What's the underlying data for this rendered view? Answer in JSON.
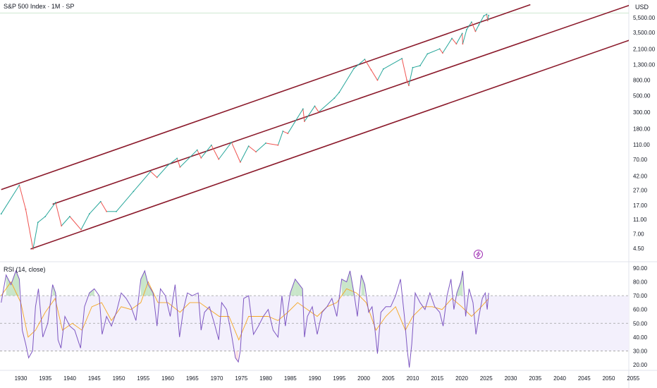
{
  "header": {
    "title": "S&P 500 Index · 1M · SP",
    "currency": "USD"
  },
  "rsi_panel": {
    "label": "RSI (14, close)"
  },
  "colors": {
    "price_up": "#26a69a",
    "price_down": "#ef5350",
    "channel": "#8b1a2b",
    "rsi_line": "#7e57c2",
    "rsi_ma": "#f5a623",
    "rsi_band_fill": "#f3f0fc",
    "overbought_fill": "#a5d6a7",
    "oversold_fill": "#ffcdd2",
    "flash_icon": "#9c27b0"
  },
  "chart_data": [
    {
      "type": "line",
      "title": "S&P 500 Index · 1M · SP",
      "yscale": "log",
      "ylabel": "USD",
      "yticks": [
        5500,
        3500,
        2100,
        1300,
        800,
        500,
        300,
        180,
        110,
        70,
        42,
        27,
        17,
        11,
        7,
        4.5
      ],
      "ytick_labels": [
        "5,500.00",
        "3,500.00",
        "2,100.00",
        "1,300.00",
        "800.00",
        "500.00",
        "300.00",
        "180.00",
        "110.00",
        "70.00",
        "42.00",
        "27.00",
        "17.00",
        "11.00",
        "7.00",
        "4.50"
      ],
      "xticks": [
        1930,
        1935,
        1940,
        1945,
        1950,
        1955,
        1960,
        1965,
        1970,
        1975,
        1980,
        1985,
        1990,
        1995,
        2000,
        2005,
        2010,
        2015,
        2020,
        2025,
        2030,
        2035,
        2040,
        2045,
        2050,
        2055
      ],
      "xlim": [
        1926,
        2058
      ],
      "ylim": [
        3.8,
        7200
      ],
      "series": [
        {
          "x": [
            1926,
            1929.7,
            1931,
            1932.5,
            1933.5,
            1935,
            1937.1,
            1938.3,
            1940,
            1942.3,
            1944,
            1946.3,
            1947.5,
            1949.5,
            1953,
            1956.5,
            1957.8,
            1960,
            1961.9,
            1962.5,
            1966,
            1966.8,
            1968.9,
            1970.4,
            1973,
            1974.8,
            1976.5,
            1978,
            1980,
            1982.5,
            1983.5,
            1984.5,
            1987.6,
            1987.9,
            1990,
            1990.8,
            1994,
            1995,
            1998,
            2000.2,
            2001.5,
            2002.8,
            2004,
            2007.8,
            2008.8,
            2009.2,
            2010,
            2011.5,
            2013,
            2015.5,
            2016.1,
            2018,
            2018.9,
            2020.1,
            2020.2,
            2021,
            2022,
            2022.8,
            2023.5,
            2024.5,
            2025.1,
            2025.3,
            2025.5
          ],
          "y": [
            13,
            31.5,
            15,
            4.4,
            10,
            12,
            18.5,
            9,
            12,
            8,
            13,
            19,
            14,
            14,
            26,
            48,
            40,
            58,
            72,
            55,
            93,
            73,
            108,
            70,
            118,
            64,
            105,
            88,
            115,
            108,
            166,
            155,
            330,
            225,
            360,
            300,
            460,
            550,
            1150,
            1520,
            1100,
            800,
            1130,
            1560,
            800,
            680,
            1180,
            1250,
            1800,
            2100,
            1850,
            2900,
            2450,
            3380,
            2450,
            3800,
            4800,
            3600,
            4400,
            5800,
            6100,
            5000,
            5900
          ]
        }
      ],
      "trend_channel": [
        {
          "x": [
            1926,
            2034
          ],
          "y": [
            27.5,
            8200
          ]
        },
        {
          "x": [
            1936.5,
            2058
          ],
          "y": [
            17.5,
            9800
          ]
        },
        {
          "x": [
            1932,
            2058
          ],
          "y": [
            4.4,
            3350
          ]
        }
      ]
    },
    {
      "type": "line",
      "title": "RSI (14, close)",
      "yticks": [
        90,
        80,
        70,
        60,
        50,
        40,
        30,
        20
      ],
      "ytick_labels": [
        "90.00",
        "80.00",
        "70.00",
        "60.00",
        "50.00",
        "40.00",
        "30.00",
        "20.00"
      ],
      "ylim": [
        15,
        93
      ],
      "bands": {
        "upper": 70,
        "middle": 50,
        "lower": 30
      },
      "series": [
        {
          "name": "RSI",
          "x": [
            1926,
            1927,
            1928,
            1929,
            1929.7,
            1930.3,
            1931,
            1931.6,
            1932.4,
            1933,
            1933.6,
            1934.5,
            1935.5,
            1936.5,
            1937.1,
            1937.6,
            1938.2,
            1939,
            1940,
            1941,
            1942.2,
            1943,
            1944,
            1945,
            1946,
            1946.6,
            1947.5,
            1948.5,
            1949.5,
            1950.5,
            1951.5,
            1952.5,
            1953.5,
            1954.5,
            1955.3,
            1956,
            1957,
            1957.8,
            1958.5,
            1959.5,
            1960.5,
            1961.5,
            1962.4,
            1963.2,
            1964,
            1965,
            1966.2,
            1966.8,
            1967.5,
            1968.5,
            1969.5,
            1970.4,
            1971,
            1972,
            1973,
            1973.8,
            1974.4,
            1974.8,
            1975.5,
            1976.5,
            1977.5,
            1978.5,
            1979.5,
            1980.5,
            1981.5,
            1982.5,
            1983.3,
            1984,
            1985,
            1986,
            1987.5,
            1987.9,
            1988.5,
            1989.5,
            1990.5,
            1991.5,
            1992.5,
            1993.5,
            1994.5,
            1995.5,
            1996.5,
            1997.2,
            1998,
            1998.7,
            1999.5,
            2000.2,
            2001,
            2001.7,
            2002.3,
            2002.8,
            2003.5,
            2004.5,
            2005.5,
            2006.5,
            2007.5,
            2008.3,
            2008.9,
            2009.3,
            2009.8,
            2010.5,
            2011.5,
            2012.5,
            2013.5,
            2014.5,
            2015.5,
            2016.2,
            2017,
            2017.8,
            2018.4,
            2019,
            2019.8,
            2020.2,
            2020.8,
            2021.5,
            2022.3,
            2022.9,
            2023.5,
            2024.2,
            2024.8,
            2025.2,
            2025.5
          ],
          "y": [
            65,
            85,
            78,
            88,
            82,
            45,
            35,
            25,
            30,
            62,
            75,
            40,
            50,
            78,
            72,
            38,
            32,
            55,
            48,
            45,
            32,
            62,
            72,
            75,
            70,
            42,
            55,
            48,
            58,
            72,
            68,
            62,
            52,
            82,
            88,
            78,
            72,
            48,
            75,
            70,
            55,
            78,
            40,
            60,
            72,
            70,
            72,
            45,
            58,
            62,
            50,
            38,
            65,
            60,
            42,
            25,
            22,
            30,
            68,
            70,
            42,
            48,
            55,
            60,
            45,
            40,
            70,
            48,
            72,
            82,
            75,
            40,
            55,
            62,
            42,
            58,
            62,
            68,
            55,
            82,
            80,
            88,
            72,
            55,
            85,
            78,
            58,
            62,
            45,
            28,
            58,
            62,
            62,
            70,
            82,
            55,
            30,
            18,
            35,
            72,
            65,
            60,
            72,
            62,
            58,
            48,
            70,
            82,
            60,
            72,
            80,
            88,
            55,
            75,
            65,
            42,
            55,
            68,
            72,
            60,
            72
          ],
          "color": "#7e57c2"
        },
        {
          "x": [
            1926,
            1928,
            1930,
            1931.5,
            1933,
            1935,
            1937,
            1938.5,
            1940.5,
            1942.5,
            1944.5,
            1946.5,
            1948.5,
            1950.5,
            1952.5,
            1954.5,
            1956,
            1958,
            1960,
            1962.5,
            1964.5,
            1966.5,
            1968.5,
            1970.5,
            1972.5,
            1974.5,
            1976.5,
            1978.5,
            1980.5,
            1982.5,
            1984.5,
            1986.5,
            1988.5,
            1990.5,
            1992.5,
            1994.5,
            1996.5,
            1998.5,
            2000.5,
            2002.5,
            2004.5,
            2006.5,
            2008.5,
            2010,
            2012,
            2014,
            2016,
            2018,
            2020,
            2022,
            2024,
            2025.5
          ],
          "y": [
            70,
            80,
            65,
            40,
            45,
            58,
            68,
            45,
            50,
            45,
            62,
            65,
            52,
            62,
            60,
            65,
            80,
            65,
            65,
            58,
            65,
            65,
            60,
            55,
            55,
            38,
            55,
            55,
            55,
            52,
            58,
            65,
            60,
            55,
            62,
            65,
            75,
            72,
            65,
            45,
            55,
            62,
            45,
            55,
            62,
            62,
            60,
            68,
            62,
            55,
            62,
            68
          ],
          "color": "#f5a623"
        }
      ]
    }
  ]
}
